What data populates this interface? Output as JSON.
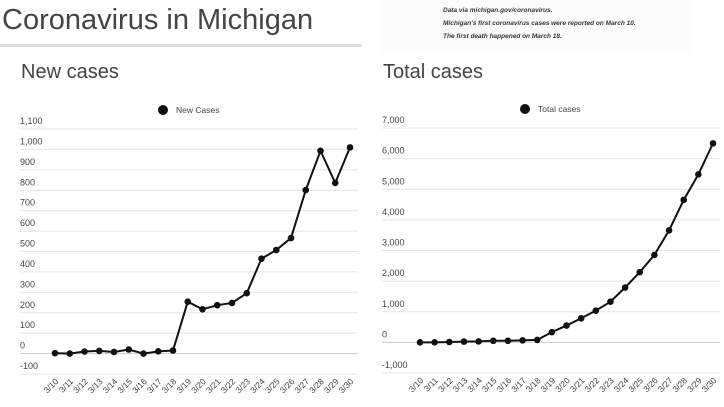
{
  "header": {
    "title": "Coronavirus in Michigan",
    "notes": [
      "Data via michigan.gov/coronavirus.",
      "Michigan's first coronavirus cases were reported on March 10.",
      "The first death happened on March 18."
    ]
  },
  "chart_data": [
    {
      "type": "line",
      "title": "New cases",
      "legend": "New Cases",
      "legend_placement": "top-center",
      "categories": [
        "3/10",
        "3/11",
        "3/12",
        "3/13",
        "3/14",
        "3/15",
        "3/16",
        "3/17",
        "3/18",
        "3/19",
        "3/20",
        "3/21",
        "3/22",
        "3/23",
        "3/24",
        "3/25",
        "3/26",
        "3/27",
        "3/28",
        "3/29",
        "3/30"
      ],
      "values": [
        2,
        0,
        10,
        13,
        8,
        20,
        0,
        11,
        15,
        254,
        217,
        237,
        248,
        296,
        465,
        507,
        566,
        801,
        993,
        836,
        1010
      ],
      "ylim": [
        -100,
        1100
      ],
      "yticks": [
        -100,
        0,
        100,
        200,
        300,
        400,
        500,
        600,
        700,
        800,
        900,
        1000,
        1100
      ],
      "ytick_labels": [
        "-100",
        "0",
        "100",
        "200",
        "300",
        "400",
        "500",
        "600",
        "700",
        "800",
        "900",
        "1,000",
        "1,100"
      ],
      "grid": true,
      "color": "#111111"
    },
    {
      "type": "line",
      "title": "Total cases",
      "legend": "Total cases",
      "legend_placement": "top-center",
      "categories": [
        "3/10",
        "3/11",
        "3/12",
        "3/13",
        "3/14",
        "3/15",
        "3/16",
        "3/17",
        "3/18",
        "3/19",
        "3/20",
        "3/21",
        "3/22",
        "3/23",
        "3/24",
        "3/25",
        "3/26",
        "3/27",
        "3/28",
        "3/29",
        "3/30"
      ],
      "values": [
        2,
        2,
        12,
        25,
        33,
        53,
        53,
        65,
        80,
        334,
        549,
        787,
        1035,
        1328,
        1791,
        2294,
        2856,
        3657,
        4650,
        5486,
        6498
      ],
      "ylim": [
        -1000,
        7000
      ],
      "yticks": [
        -1000,
        0,
        1000,
        2000,
        3000,
        4000,
        5000,
        6000,
        7000
      ],
      "ytick_labels": [
        "-1,000",
        "0",
        "1,000",
        "2,000",
        "3,000",
        "4,000",
        "5,000",
        "6,000",
        "7,000"
      ],
      "grid": true,
      "color": "#111111"
    }
  ]
}
